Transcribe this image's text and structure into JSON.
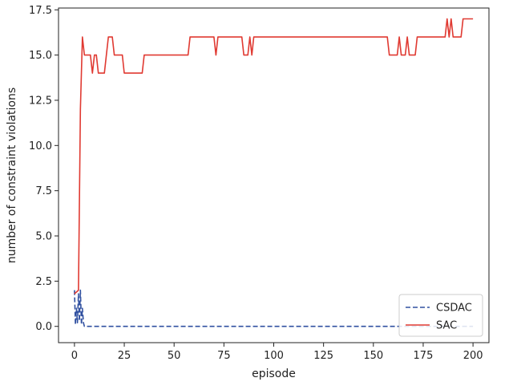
{
  "chart_data": {
    "type": "line",
    "title": "",
    "xlabel": "episode",
    "ylabel": "number of constraint violations",
    "xlim": [
      -8,
      208
    ],
    "ylim": [
      -0.9,
      17.6
    ],
    "xticks": [
      0,
      25,
      50,
      75,
      100,
      125,
      150,
      175,
      200
    ],
    "xtick_labels": [
      "0",
      "25",
      "50",
      "75",
      "100",
      "125",
      "150",
      "175",
      "200"
    ],
    "yticks": [
      0.0,
      2.5,
      5.0,
      7.5,
      10.0,
      12.5,
      15.0,
      17.5
    ],
    "ytick_labels": [
      "0.0",
      "2.5",
      "5.0",
      "7.5",
      "10.0",
      "12.5",
      "15.0",
      "17.5"
    ],
    "grid": false,
    "legend_position": "lower-right",
    "series": [
      {
        "name": "CSDAC",
        "color": "#3050a0",
        "dash": "dashed",
        "x": [
          0,
          0.5,
          1,
          1.5,
          2,
          2.5,
          3,
          3.5,
          4,
          4.5,
          5,
          50,
          100,
          150,
          200
        ],
        "y": [
          2,
          0.1,
          1,
          0.2,
          1.8,
          0.3,
          2,
          0.1,
          1,
          0.2,
          0,
          0,
          0,
          0,
          0
        ]
      },
      {
        "name": "SAC",
        "color": "#e03a32",
        "dash": "solid",
        "x": [
          0,
          2,
          3,
          4,
          5,
          8,
          9,
          10,
          11,
          12,
          15,
          17,
          19,
          20,
          24,
          25,
          34,
          35,
          57,
          58,
          70,
          71,
          72,
          84,
          85,
          87,
          88,
          89,
          90,
          157,
          158,
          162,
          163,
          164,
          166,
          167,
          168,
          171,
          172,
          186,
          187,
          188,
          189,
          190,
          191,
          194,
          195,
          196,
          200
        ],
        "y": [
          1.8,
          2,
          12,
          16,
          15,
          15,
          14,
          15,
          15,
          14,
          14,
          16,
          16,
          15,
          15,
          14,
          14,
          15,
          15,
          16,
          16,
          15,
          16,
          16,
          15,
          15,
          16,
          15,
          16,
          16,
          15,
          15,
          16,
          15,
          15,
          16,
          15,
          15,
          16,
          16,
          17,
          16,
          17,
          16,
          16,
          16,
          17,
          17,
          17
        ]
      }
    ]
  }
}
